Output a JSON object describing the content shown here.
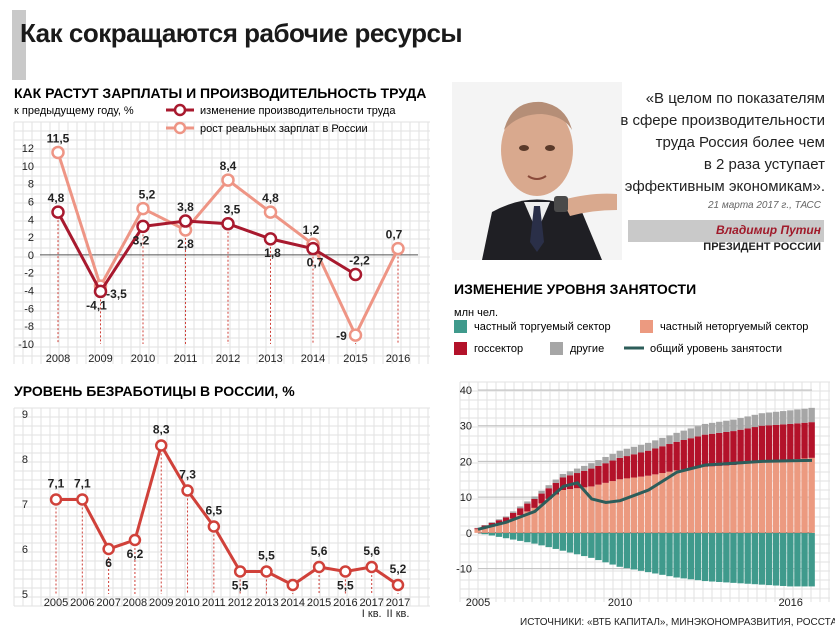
{
  "title": "Как сокращаются рабочие ресурсы",
  "quote": {
    "text_lines": [
      "«В целом по показателям",
      "в сфере производительности",
      "труда Россия более чем",
      "в 2 раза уступает",
      "эффективным экономикам»."
    ],
    "date": "21 марта 2017 г., ТАСС",
    "speaker": "Владимир Путин",
    "role": "ПРЕЗИДЕНТ РОССИИ"
  },
  "source": "ИСТОЧНИКИ: «ВТБ КАПИТАЛ», МИНЭКОНОМРАЗВИТИЯ, РОССТАТ",
  "colors": {
    "productivity": "#a8192e",
    "wages": "#ee9585",
    "unemployment": "#d0413a",
    "tradable": "#3f9a8c",
    "nontradable": "#ec9a80",
    "gov": "#b3122a",
    "other": "#a6a6a6",
    "total": "#2d5d5a"
  },
  "chart_data": [
    {
      "type": "line",
      "title": "КАК РАСТУТ ЗАРПЛАТЫ И ПРОИЗВОДИТЕЛЬНОСТЬ ТРУДА",
      "subtitle": "к предыдущему году, %",
      "categories": [
        "2008",
        "2009",
        "2010",
        "2011",
        "2012",
        "2013",
        "2014",
        "2015",
        "2016"
      ],
      "ylim": [
        -10,
        12
      ],
      "yticks": [
        "-10",
        "-8",
        "-6",
        "-4",
        "-2",
        "0",
        "2",
        "4",
        "6",
        "8",
        "10",
        "12"
      ],
      "grid": true,
      "legend_position": "top",
      "series": [
        {
          "name": "изменение производительности труда",
          "values": [
            4.8,
            -4.1,
            3.2,
            3.8,
            3.5,
            1.8,
            0.7,
            -2.2,
            null
          ],
          "labels": [
            "4,8",
            "-4,1",
            "3,2",
            "3,8",
            "3,5",
            "1,8",
            "0,7",
            "-2,2",
            ""
          ]
        },
        {
          "name": "рост реальных зарплат в России",
          "values": [
            11.5,
            -3.5,
            5.2,
            2.8,
            8.4,
            4.8,
            1.2,
            -9,
            0.7
          ],
          "labels": [
            "11,5",
            "-3,5",
            "5,2",
            "2,8",
            "8,4",
            "4,8",
            "1,2",
            "-9",
            "0,7"
          ]
        }
      ]
    },
    {
      "type": "line",
      "title": "УРОВЕНЬ БЕЗРАБОТИЦЫ В РОССИИ, %",
      "categories": [
        "2005",
        "2006",
        "2007",
        "2008",
        "2009",
        "2010",
        "2011",
        "2012",
        "2013",
        "2014",
        "2015",
        "2016",
        "2017",
        "2017"
      ],
      "category_sublabels": [
        "",
        "",
        "",
        "",
        "",
        "",
        "",
        "",
        "",
        "",
        "",
        "",
        "I кв.",
        "II кв."
      ],
      "ylim": [
        5,
        9
      ],
      "yticks": [
        "5",
        "6",
        "7",
        "8",
        "9"
      ],
      "grid": true,
      "values": [
        7.1,
        7.1,
        6.0,
        6.2,
        8.3,
        7.3,
        6.5,
        5.5,
        5.5,
        5.2,
        5.6,
        5.5,
        5.6,
        5.2
      ],
      "labels": [
        "7,1",
        "7,1",
        "6",
        "6,2",
        "8,3",
        "7,3",
        "6,5",
        "5,5",
        "5,5",
        "",
        "5,6",
        "5,5",
        "5,6",
        "5,2"
      ]
    },
    {
      "type": "area",
      "title": "ИЗМЕНЕНИЕ УРОВНЯ ЗАНЯТОСТИ",
      "ylabel": "млн чел.",
      "x_start": 2005,
      "x_end": 2016.75,
      "xticks": [
        "2005",
        "2010",
        "2016"
      ],
      "ylim": [
        -16,
        40
      ],
      "yticks": [
        "-10",
        "0",
        "10",
        "20",
        "30",
        "40"
      ],
      "grid": true,
      "legend_position": "top",
      "series": [
        {
          "name": "частный торгуемый сектор",
          "key": "tradable",
          "points": [
            [
              2005,
              0
            ],
            [
              2006,
              -1.5
            ],
            [
              2007,
              -3
            ],
            [
              2008,
              -5
            ],
            [
              2009,
              -7
            ],
            [
              2010,
              -9.5
            ],
            [
              2011,
              -11
            ],
            [
              2012,
              -12.5
            ],
            [
              2013,
              -13.5
            ],
            [
              2014,
              -14
            ],
            [
              2015,
              -14.5
            ],
            [
              2016,
              -15
            ],
            [
              2016.75,
              -15
            ]
          ]
        },
        {
          "name": "частный неторгуемый сектор",
          "key": "nontradable",
          "points": [
            [
              2005,
              1
            ],
            [
              2006,
              3
            ],
            [
              2007,
              7
            ],
            [
              2008,
              12
            ],
            [
              2009,
              13
            ],
            [
              2010,
              15
            ],
            [
              2011,
              16
            ],
            [
              2012,
              17.5
            ],
            [
              2013,
              18.5
            ],
            [
              2014,
              19
            ],
            [
              2015,
              20
            ],
            [
              2016,
              20.5
            ],
            [
              2016.75,
              21
            ]
          ]
        },
        {
          "name": "госсектор",
          "key": "gov",
          "points": [
            [
              2005,
              0.3
            ],
            [
              2006,
              1.3
            ],
            [
              2007,
              2.5
            ],
            [
              2008,
              3.5
            ],
            [
              2009,
              5
            ],
            [
              2010,
              6
            ],
            [
              2011,
              7
            ],
            [
              2012,
              8
            ],
            [
              2013,
              9
            ],
            [
              2014,
              9.5
            ],
            [
              2015,
              10
            ],
            [
              2016,
              10
            ],
            [
              2016.75,
              10
            ]
          ]
        },
        {
          "name": "другие",
          "key": "other",
          "points": [
            [
              2005,
              0.1
            ],
            [
              2006,
              0.3
            ],
            [
              2007,
              0.7
            ],
            [
              2008,
              1
            ],
            [
              2009,
              1.5
            ],
            [
              2010,
              2
            ],
            [
              2011,
              2.2
            ],
            [
              2012,
              2.5
            ],
            [
              2013,
              3
            ],
            [
              2014,
              3.2
            ],
            [
              2015,
              3.5
            ],
            [
              2016,
              3.8
            ],
            [
              2016.75,
              4
            ]
          ]
        },
        {
          "name": "общий уровень занятости",
          "key": "total",
          "type": "line",
          "points": [
            [
              2005,
              1
            ],
            [
              2006,
              3
            ],
            [
              2007,
              6
            ],
            [
              2008,
              13
            ],
            [
              2008.5,
              14
            ],
            [
              2009,
              9.5
            ],
            [
              2009.5,
              8.5
            ],
            [
              2010,
              9
            ],
            [
              2011,
              12
            ],
            [
              2012,
              17
            ],
            [
              2013,
              19
            ],
            [
              2014,
              19.5
            ],
            [
              2015,
              20
            ],
            [
              2016,
              20.2
            ],
            [
              2016.75,
              20.3
            ]
          ]
        }
      ]
    }
  ]
}
